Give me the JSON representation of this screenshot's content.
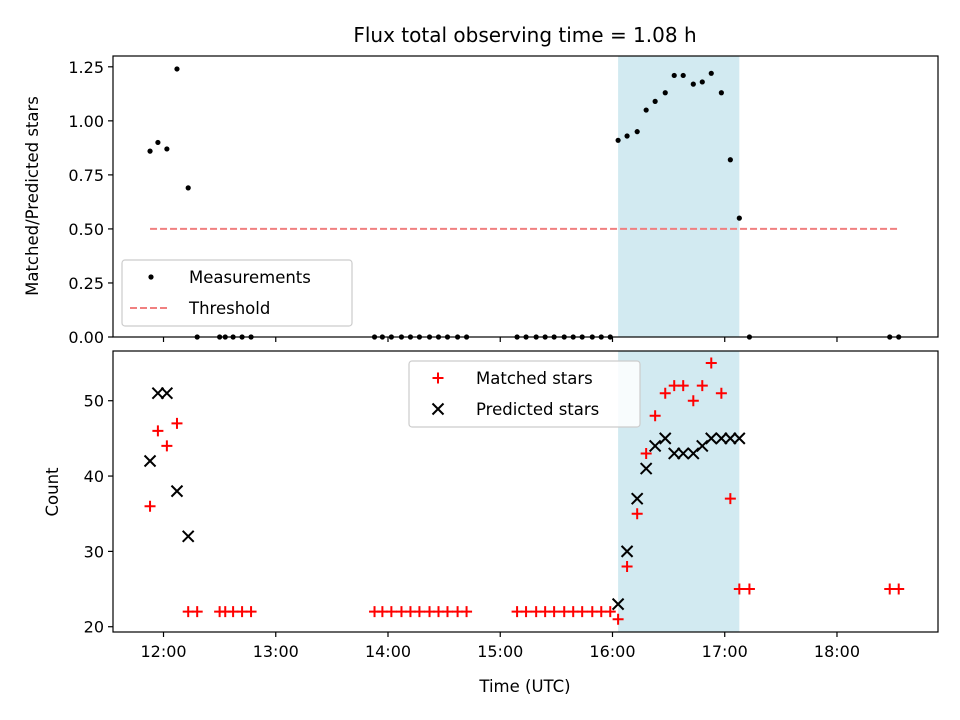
{
  "chart_data": {
    "type": "scatter",
    "title": "Flux total observing time = 1.08 h",
    "xlabel": "Time (UTC)",
    "x_tick_labels": [
      "12:00",
      "13:00",
      "14:00",
      "15:00",
      "16:00",
      "17:00",
      "18:00"
    ],
    "x_tick_hours": [
      12,
      13,
      14,
      15,
      16,
      17,
      18
    ],
    "xlim": [
      11.55,
      18.9
    ],
    "highlight_span": {
      "from": 16.05,
      "to": 17.13,
      "color": "#add8e6"
    },
    "panels": [
      {
        "ylabel": "Matched/Predicted stars",
        "ylim": [
          0,
          1.3
        ],
        "y_ticks": [
          0,
          0.25,
          0.5,
          0.75,
          1.0,
          1.25
        ],
        "y_tick_labels": [
          "0.00",
          "0.25",
          "0.50",
          "0.75",
          "1.00",
          "1.25"
        ],
        "legend_position": "lower-left",
        "series": [
          {
            "name": "Measurements",
            "kind": "dot",
            "color": "#000000",
            "x": [
              11.88,
              11.95,
              12.03,
              12.12,
              12.22,
              12.3,
              12.5,
              12.55,
              12.62,
              12.7,
              12.78,
              13.88,
              13.95,
              14.03,
              14.12,
              14.2,
              14.28,
              14.37,
              14.45,
              14.53,
              14.62,
              14.7,
              15.15,
              15.23,
              15.32,
              15.4,
              15.48,
              15.57,
              15.65,
              15.73,
              15.82,
              15.9,
              15.98,
              16.05,
              16.13,
              16.22,
              16.3,
              16.38,
              16.47,
              16.55,
              16.63,
              16.72,
              16.8,
              16.88,
              16.97,
              17.05,
              17.13,
              17.22,
              18.47,
              18.55
            ],
            "y": [
              0.86,
              0.9,
              0.87,
              1.24,
              0.69,
              0,
              0,
              0,
              0,
              0,
              0,
              0,
              0,
              0,
              0,
              0,
              0,
              0,
              0,
              0,
              0,
              0,
              0,
              0,
              0,
              0,
              0,
              0,
              0,
              0,
              0,
              0,
              0,
              0.91,
              0.93,
              0.95,
              1.05,
              1.09,
              1.13,
              1.21,
              1.21,
              1.17,
              1.18,
              1.22,
              1.13,
              0.82,
              0.55,
              0,
              0,
              0
            ]
          },
          {
            "name": "Threshold",
            "kind": "dashed-line",
            "color": "#f08080",
            "x": [
              11.88,
              18.55
            ],
            "y": [
              0.5,
              0.5
            ]
          }
        ]
      },
      {
        "ylabel": "Count",
        "ylim": [
          19.3,
          56.6
        ],
        "y_ticks": [
          20,
          30,
          40,
          50
        ],
        "y_tick_labels": [
          "20",
          "30",
          "40",
          "50"
        ],
        "legend_position": "upper-center",
        "series": [
          {
            "name": "Matched stars",
            "kind": "plus",
            "color": "#ff0000",
            "x": [
              11.88,
              11.95,
              12.03,
              12.12,
              12.22,
              12.3,
              12.5,
              12.55,
              12.62,
              12.7,
              12.78,
              13.88,
              13.95,
              14.03,
              14.12,
              14.2,
              14.28,
              14.37,
              14.45,
              14.53,
              14.62,
              14.7,
              15.15,
              15.23,
              15.32,
              15.4,
              15.48,
              15.57,
              15.65,
              15.73,
              15.82,
              15.9,
              15.98,
              16.05,
              16.13,
              16.22,
              16.3,
              16.38,
              16.47,
              16.55,
              16.63,
              16.72,
              16.8,
              16.88,
              16.97,
              17.05,
              17.13,
              17.22,
              18.47,
              18.55
            ],
            "y": [
              36,
              46,
              44,
              47,
              22,
              22,
              22,
              22,
              22,
              22,
              22,
              22,
              22,
              22,
              22,
              22,
              22,
              22,
              22,
              22,
              22,
              22,
              22,
              22,
              22,
              22,
              22,
              22,
              22,
              22,
              22,
              22,
              22,
              21,
              28,
              35,
              43,
              48,
              51,
              52,
              52,
              50,
              52,
              55,
              51,
              37,
              25,
              25,
              25,
              25
            ]
          },
          {
            "name": "Predicted stars",
            "kind": "x",
            "color": "#000000",
            "x": [
              11.88,
              11.95,
              12.03,
              12.12,
              12.22,
              16.05,
              16.13,
              16.22,
              16.3,
              16.38,
              16.47,
              16.55,
              16.63,
              16.72,
              16.8,
              16.88,
              16.97,
              17.05,
              17.13
            ],
            "y": [
              42,
              51,
              51,
              38,
              32,
              23,
              30,
              37,
              41,
              44,
              45,
              43,
              43,
              43,
              44,
              45,
              45,
              45,
              45
            ]
          }
        ]
      }
    ]
  }
}
